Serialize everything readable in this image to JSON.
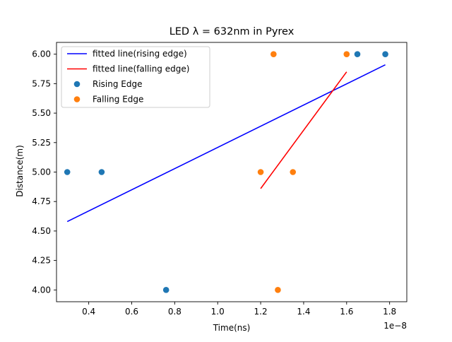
{
  "chart_data": {
    "type": "scatter",
    "title": "LED λ = 632nm in Pyrex",
    "xlabel": "Time(ns)",
    "ylabel": "Distance(m)",
    "x_offset_label": "1e−8",
    "xlim": [
      2.5e-09,
      1.88e-08
    ],
    "ylim": [
      3.9,
      6.1
    ],
    "x_ticks": [
      {
        "value": 4e-09,
        "label": "0.4"
      },
      {
        "value": 6e-09,
        "label": "0.6"
      },
      {
        "value": 8e-09,
        "label": "0.8"
      },
      {
        "value": 1e-08,
        "label": "1.0"
      },
      {
        "value": 1.2e-08,
        "label": "1.2"
      },
      {
        "value": 1.4e-08,
        "label": "1.4"
      },
      {
        "value": 1.6e-08,
        "label": "1.6"
      },
      {
        "value": 1.8e-08,
        "label": "1.8"
      }
    ],
    "y_ticks": [
      {
        "value": 4.0,
        "label": "4.00"
      },
      {
        "value": 4.25,
        "label": "4.25"
      },
      {
        "value": 4.5,
        "label": "4.50"
      },
      {
        "value": 4.75,
        "label": "4.75"
      },
      {
        "value": 5.0,
        "label": "5.00"
      },
      {
        "value": 5.25,
        "label": "5.25"
      },
      {
        "value": 5.5,
        "label": "5.50"
      },
      {
        "value": 5.75,
        "label": "5.75"
      },
      {
        "value": 6.0,
        "label": "6.00"
      }
    ],
    "grid": false,
    "legend_position": "top-left",
    "series": [
      {
        "name": "fitted line(rising edge)",
        "kind": "line",
        "color": "#0000ff",
        "x": [
          3e-09,
          1.78e-08
        ],
        "y": [
          4.58,
          5.91
        ]
      },
      {
        "name": "fitted line(falling edge)",
        "kind": "line",
        "color": "#ff0000",
        "x": [
          1.2e-08,
          1.6e-08
        ],
        "y": [
          4.86,
          5.85
        ]
      },
      {
        "name": "Rising Edge",
        "kind": "scatter",
        "color": "#1f77b4",
        "x": [
          3e-09,
          4.6e-09,
          7.6e-09,
          1.65e-08,
          1.78e-08
        ],
        "y": [
          5.0,
          5.0,
          4.0,
          6.0,
          6.0
        ]
      },
      {
        "name": "Falling Edge",
        "kind": "scatter",
        "color": "#ff7f0e",
        "x": [
          1.2e-08,
          1.26e-08,
          1.28e-08,
          1.35e-08,
          1.6e-08
        ],
        "y": [
          5.0,
          6.0,
          4.0,
          5.0,
          6.0
        ]
      }
    ]
  }
}
